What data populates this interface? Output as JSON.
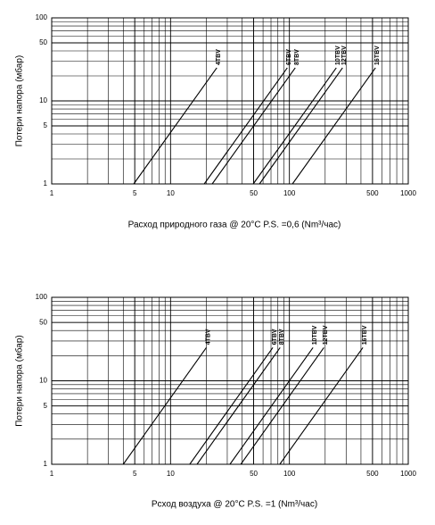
{
  "chart_data": [
    {
      "type": "line",
      "xlabel": "Расход природного газа @ 20°C P.S. =0,6 (Nm³/час)",
      "ylabel": "Потери напора (мбар)",
      "xscale": "log",
      "yscale": "log",
      "xlim": [
        1,
        1000
      ],
      "ylim": [
        1,
        100
      ],
      "xticks": [
        1,
        5,
        10,
        50,
        100,
        500,
        1000
      ],
      "yticks": [
        1,
        5,
        10,
        50,
        100
      ],
      "grid": true,
      "minor_grid": true,
      "series": [
        {
          "name": "4TBV",
          "color": "#000000",
          "x": [
            4.9,
            24.5
          ],
          "values": [
            1,
            25
          ]
        },
        {
          "name": "6TBV",
          "color": "#000000",
          "x": [
            19.2,
            96
          ],
          "values": [
            1,
            25
          ]
        },
        {
          "name": "8TBV",
          "color": "#000000",
          "x": [
            22.4,
            112
          ],
          "values": [
            1,
            25
          ]
        },
        {
          "name": "10TBV",
          "color": "#000000",
          "x": [
            49.6,
            248
          ],
          "values": [
            1,
            25
          ]
        },
        {
          "name": "12TBV",
          "color": "#000000",
          "x": [
            56,
            280
          ],
          "values": [
            1,
            25
          ]
        },
        {
          "name": "16TBV",
          "color": "#000000",
          "x": [
            106,
            530
          ],
          "values": [
            1,
            25
          ]
        }
      ]
    },
    {
      "type": "line",
      "xlabel": "Рсход воздуха @ 20°C P.S. =1 (Nm³/час)",
      "ylabel": "Потери напора (мбар)",
      "xscale": "log",
      "yscale": "log",
      "xlim": [
        1,
        1000
      ],
      "ylim": [
        1,
        100
      ],
      "xticks": [
        1,
        5,
        10,
        50,
        100,
        500,
        1000
      ],
      "yticks": [
        1,
        5,
        10,
        50,
        100
      ],
      "grid": true,
      "minor_grid": true,
      "series": [
        {
          "name": "4TBV",
          "color": "#000000",
          "x": [
            4,
            20
          ],
          "values": [
            1,
            25
          ]
        },
        {
          "name": "6TBV",
          "color": "#000000",
          "x": [
            14.5,
            72.5
          ],
          "values": [
            1,
            25
          ]
        },
        {
          "name": "8TBV",
          "color": "#000000",
          "x": [
            16.7,
            83.5
          ],
          "values": [
            1,
            25
          ]
        },
        {
          "name": "10TBV",
          "color": "#000000",
          "x": [
            31.6,
            158
          ],
          "values": [
            1,
            25
          ]
        },
        {
          "name": "12TBV",
          "color": "#000000",
          "x": [
            39,
            195
          ],
          "values": [
            1,
            25
          ]
        },
        {
          "name": "16TBV",
          "color": "#000000",
          "x": [
            83,
            415
          ],
          "values": [
            1,
            25
          ]
        }
      ]
    }
  ]
}
